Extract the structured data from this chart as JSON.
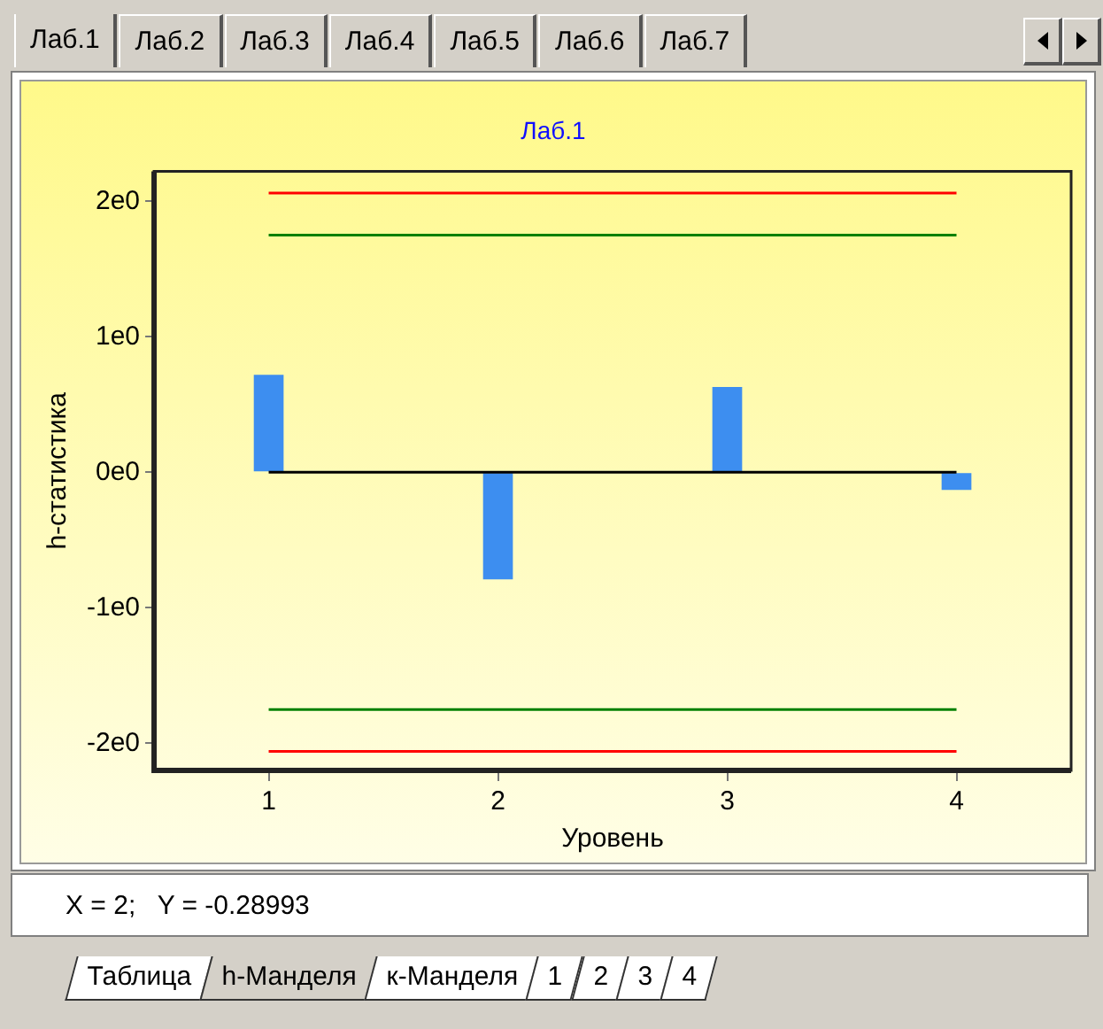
{
  "chart_data": {
    "type": "bar",
    "title": "Лаб.1",
    "xlabel": "Уровень",
    "ylabel": "h-статистика",
    "categories": [
      "1",
      "2",
      "3",
      "4"
    ],
    "values": [
      0.72,
      -0.79,
      0.63,
      -0.13
    ],
    "color": "#3d8ef0",
    "ylim": [
      -2.2,
      2.22
    ],
    "yticks": [
      {
        "value": -2,
        "label": "-2e0"
      },
      {
        "value": -1,
        "label": "-1e0"
      },
      {
        "value": 0,
        "label": "0e0"
      },
      {
        "value": 1,
        "label": "1e0"
      },
      {
        "value": 2,
        "label": "2e0"
      }
    ],
    "ref_lines": [
      {
        "axis": "y",
        "value": 2.06,
        "color": "#ff0000"
      },
      {
        "axis": "y",
        "value": 1.75,
        "color": "#008000"
      },
      {
        "axis": "y",
        "value": 0,
        "color": "#000000"
      },
      {
        "axis": "y",
        "value": -1.75,
        "color": "#008000"
      },
      {
        "axis": "y",
        "value": -2.06,
        "color": "#ff0000"
      }
    ],
    "annotations": [
      "Лаб.1",
      "Лаб.2",
      "Лаб.3",
      "Лаб.4",
      "Лаб.5",
      "Лаб.6",
      "Лаб.7",
      "X = 2;   Y = -0.28993",
      "Таблица",
      "h-Манделя",
      "к-Манделя",
      "1",
      "2",
      "3",
      "4"
    ],
    "legend": false
  }
}
